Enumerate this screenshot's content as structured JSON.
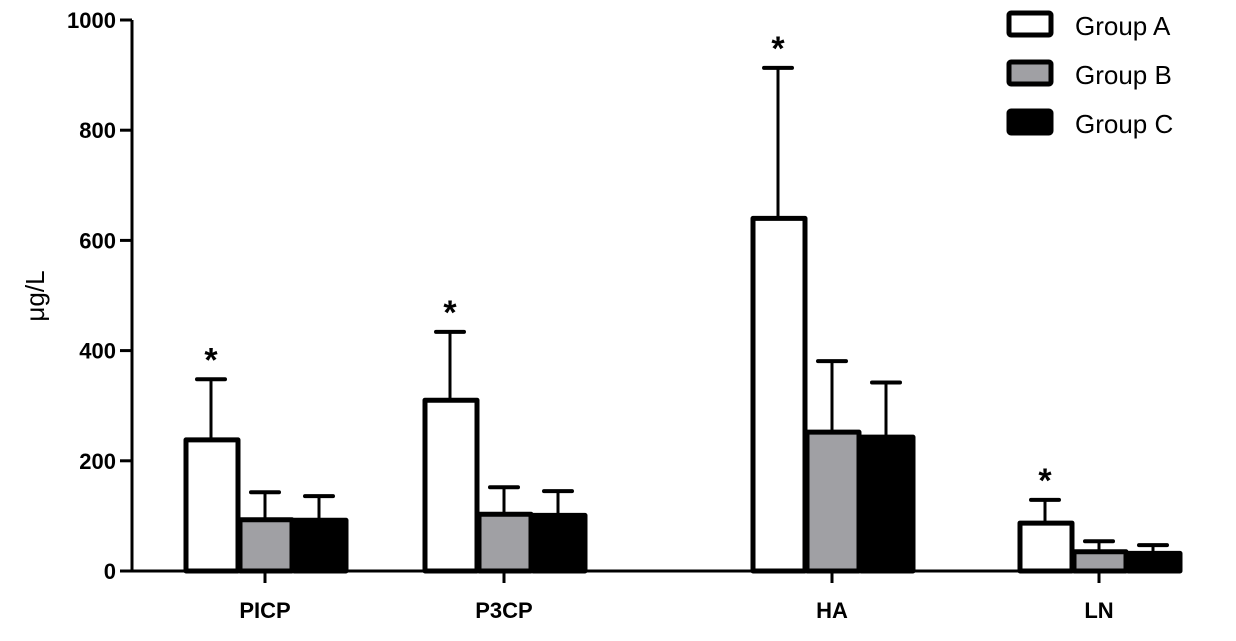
{
  "chart_data": {
    "type": "bar",
    "title": "",
    "xlabel": "",
    "ylabel": "μg/L",
    "ylim": [
      0,
      1000
    ],
    "yticks": [
      0,
      200,
      400,
      600,
      800,
      1000
    ],
    "grid": false,
    "legend_position": "top-right",
    "categories": [
      "PICP",
      "P3CP",
      "HA",
      "LN"
    ],
    "series": [
      {
        "name": "Group A",
        "fill": "#ffffff",
        "stroke": "#000000",
        "values": [
          238,
          310,
          640,
          87
        ],
        "error_upper": [
          348,
          434,
          913,
          129
        ],
        "significance": [
          "*",
          "*",
          "*",
          "*"
        ]
      },
      {
        "name": "Group B",
        "fill": "#a0a0a4",
        "stroke": "#000000",
        "values": [
          93,
          103,
          252,
          35
        ],
        "error_upper": [
          143,
          152,
          381,
          54
        ],
        "significance": [
          "",
          "",
          "",
          ""
        ]
      },
      {
        "name": "Group C",
        "fill": "#000000",
        "stroke": "#000000",
        "values": [
          92,
          101,
          243,
          32
        ],
        "error_upper": [
          136,
          145,
          342,
          47
        ],
        "significance": [
          "",
          "",
          "",
          ""
        ]
      }
    ],
    "annotations": [
      "* marks Group A bars in every category"
    ]
  },
  "legend": {
    "items": [
      {
        "label": "Group A"
      },
      {
        "label": "Group B"
      },
      {
        "label": "Group C"
      }
    ]
  },
  "axes": {
    "ylabel": "μg/L",
    "yticks": [
      "0",
      "200",
      "400",
      "600",
      "800",
      "1000"
    ],
    "categories": [
      "PICP",
      "P3CP",
      "HA",
      "LN"
    ]
  }
}
